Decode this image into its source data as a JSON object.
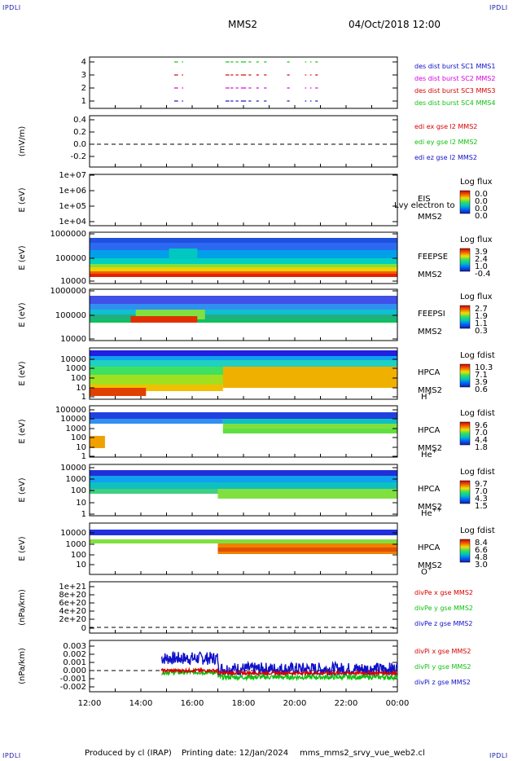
{
  "corner_label": "IPDLI",
  "header": {
    "spacecraft": "MMS2",
    "date": "04/Oct/2018 12:00"
  },
  "footer": {
    "produced_by": "Produced by cl (IRAP)",
    "printing_date": "Printing date: 12/Jan/2024",
    "filename": "mms_mms2_srvy_vue_web2.cl"
  },
  "colors": {
    "red": "#d80000",
    "green": "#10c010",
    "blue": "#1010c8",
    "magenta": "#d800d8",
    "axis": "#000000"
  },
  "chart_data": {
    "type": "multi-panel time series",
    "x": {
      "tick_labels": [
        "12:00",
        "14:00",
        "16:00",
        "18:00",
        "20:00",
        "22:00",
        "00:00"
      ],
      "range_hours": [
        12,
        24
      ]
    },
    "panels": [
      {
        "id": "burst",
        "type": "line",
        "ylabel": "",
        "yticks": [
          "1",
          "2",
          "3",
          "4"
        ],
        "legend": [
          {
            "text": "des dist burst SC1 MMS1",
            "color": "#1010c8"
          },
          {
            "text": "des dist burst SC2 MMS2",
            "color": "#d800d8"
          },
          {
            "text": "des dist burst SC3 MMS3",
            "color": "#d80000"
          },
          {
            "text": "des dist burst SC4 MMS4",
            "color": "#10c010"
          }
        ],
        "segments_hours": [
          [
            15.3,
            15.45
          ],
          [
            15.6,
            15.65
          ],
          [
            17.3,
            17.45
          ],
          [
            17.5,
            17.6
          ],
          [
            17.7,
            17.8
          ],
          [
            17.9,
            18.1
          ],
          [
            18.2,
            18.3
          ],
          [
            18.5,
            18.6
          ],
          [
            18.8,
            18.9
          ],
          [
            19.7,
            19.8
          ],
          [
            20.4,
            20.45
          ],
          [
            20.6,
            20.65
          ],
          [
            20.8,
            20.9
          ]
        ]
      },
      {
        "id": "edi",
        "type": "line",
        "ylabel": "(mV/m)",
        "yticks": [
          "0.4",
          "0.2",
          "0.0",
          "-0.2"
        ],
        "legend": [
          {
            "text": "edi ex gse l2 MMS2",
            "color": "#d80000"
          },
          {
            "text": "edi ey gse l2 MMS2",
            "color": "#10c010"
          },
          {
            "text": "edi ez gse l2 MMS2",
            "color": "#1010c8"
          }
        ]
      },
      {
        "id": "eis",
        "type": "heatmap",
        "ylabel": "E (eV)",
        "yticks": [
          "1e+07",
          "1e+06",
          "1e+05",
          "1e+04"
        ],
        "labels": [
          "EIS",
          "MMS2"
        ],
        "overlay": "Lvy electron to",
        "cb_title": "Log flux",
        "cb_ticks": [
          "0.0",
          "0.0",
          "0.0",
          "0.0"
        ]
      },
      {
        "id": "feepse",
        "type": "heatmap",
        "ylabel": "E (eV)",
        "yticks": [
          "1000000",
          "100000",
          "10000"
        ],
        "labels": [
          "FEEPSE",
          "MMS2"
        ],
        "cb_title": "Log flux",
        "cb_ticks": [
          "3.9",
          "2.4",
          "1.0",
          "-0.4"
        ]
      },
      {
        "id": "feepsi",
        "type": "heatmap",
        "ylabel": "E (eV)",
        "yticks": [
          "1000000",
          "100000",
          "10000"
        ],
        "labels": [
          "FEEPSI",
          "MMS2"
        ],
        "cb_title": "Log flux",
        "cb_ticks": [
          "2.7",
          "1.9",
          "1.1",
          "0.3"
        ]
      },
      {
        "id": "hpca_h",
        "type": "heatmap",
        "ylabel": "E (eV)",
        "yticks": [
          "10000",
          "1000",
          "100",
          "10",
          "1"
        ],
        "labels": [
          "HPCA",
          "MMS2"
        ],
        "species": "H",
        "species_sup": "+",
        "cb_title": "Log fdist",
        "cb_ticks": [
          "10.3",
          "7.1",
          "3.9",
          "0.6"
        ]
      },
      {
        "id": "hpca_he1",
        "type": "heatmap",
        "ylabel": "E (eV)",
        "yticks": [
          "100000",
          "10000",
          "1000",
          "100",
          "10",
          "1"
        ],
        "labels": [
          "HPCA",
          "MMS2"
        ],
        "species": "He",
        "species_sup": "+",
        "cb_title": "Log fdist",
        "cb_ticks": [
          "9.6",
          "7.0",
          "4.4",
          "1.8"
        ]
      },
      {
        "id": "hpca_he2",
        "type": "heatmap",
        "ylabel": "E (eV)",
        "yticks": [
          "10000",
          "1000",
          "100",
          "10",
          "1"
        ],
        "labels": [
          "HPCA",
          "MMS2"
        ],
        "species": "He",
        "species_sup": "++",
        "cb_title": "Log fdist",
        "cb_ticks": [
          "9.7",
          "7.0",
          "4.3",
          "1.5"
        ]
      },
      {
        "id": "hpca_o",
        "type": "heatmap",
        "ylabel": "E (eV)",
        "yticks": [
          "10000",
          "1000",
          "100",
          "10"
        ],
        "labels": [
          "HPCA",
          "MMS2"
        ],
        "species": "O",
        "species_sup": "+",
        "cb_title": "Log fdist",
        "cb_ticks": [
          "8.4",
          "6.6",
          "4.8",
          "3.0"
        ]
      },
      {
        "id": "divpe",
        "type": "line",
        "ylabel": "(nPa/km)",
        "yticks": [
          "1e+21",
          "8e+20",
          "6e+20",
          "4e+20",
          "2e+20",
          "0"
        ],
        "legend": [
          {
            "text": "divPe x gse MMS2",
            "color": "#d80000"
          },
          {
            "text": "divPe y gse MMS2",
            "color": "#10c010"
          },
          {
            "text": "divPe z gse MMS2",
            "color": "#1010c8"
          }
        ]
      },
      {
        "id": "divpi",
        "type": "line",
        "ylabel": "(nPa/km)",
        "yticks": [
          "0.003",
          "0.002",
          "0.001",
          "0.000",
          "-0.001",
          "-0.002"
        ],
        "legend": [
          {
            "text": "divPi x gse MMS2",
            "color": "#d80000"
          },
          {
            "text": "divPi y gse MMS2",
            "color": "#10c010"
          },
          {
            "text": "divPi z gse MMS2",
            "color": "#1010c8"
          }
        ],
        "series_summary": [
          {
            "name": "divPi z gse MMS2",
            "start_hour": 14.8,
            "level_before_17h": 0.0015,
            "level_after_17h": 0.0002,
            "spread": 0.0008
          },
          {
            "name": "divPi y gse MMS2",
            "start_hour": 14.8,
            "level_before_17h": -0.0002,
            "level_after_17h": -0.0008,
            "spread": 0.0003
          },
          {
            "name": "divPi x gse MMS2",
            "start_hour": 14.8,
            "level_before_17h": 0.0,
            "level_after_17h": -0.0003,
            "spread": 0.0002
          }
        ]
      }
    ]
  }
}
